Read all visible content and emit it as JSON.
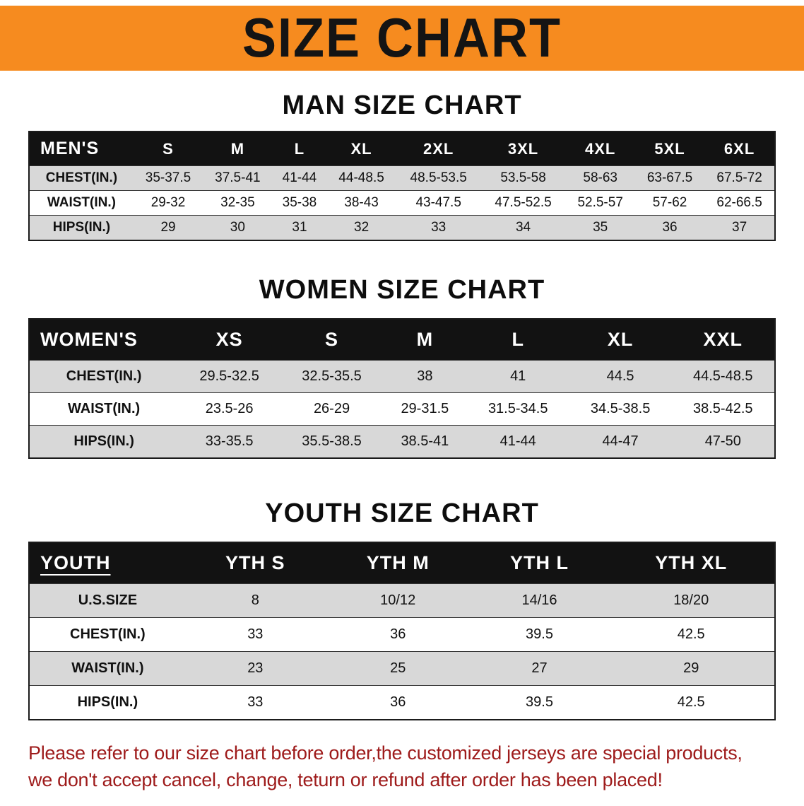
{
  "banner": {
    "title": "SIZE CHART"
  },
  "sections": [
    {
      "heading": "MAN SIZE CHART",
      "table": {
        "header": [
          "MEN'S",
          "S",
          "M",
          "L",
          "XL",
          "2XL",
          "3XL",
          "4XL",
          "5XL",
          "6XL"
        ],
        "rows": [
          [
            "CHEST(IN.)",
            "35-37.5",
            "37.5-41",
            "41-44",
            "44-48.5",
            "48.5-53.5",
            "53.5-58",
            "58-63",
            "63-67.5",
            "67.5-72"
          ],
          [
            "WAIST(IN.)",
            "29-32",
            "32-35",
            "35-38",
            "38-43",
            "43-47.5",
            "47.5-52.5",
            "52.5-57",
            "57-62",
            "62-66.5"
          ],
          [
            "HIPS(IN.)",
            "29",
            "30",
            "31",
            "32",
            "33",
            "34",
            "35",
            "36",
            "37"
          ]
        ]
      }
    },
    {
      "heading": "WOMEN SIZE CHART",
      "table": {
        "header": [
          "WOMEN'S",
          "XS",
          "S",
          "M",
          "L",
          "XL",
          "XXL"
        ],
        "rows": [
          [
            "CHEST(IN.)",
            "29.5-32.5",
            "32.5-35.5",
            "38",
            "41",
            "44.5",
            "44.5-48.5"
          ],
          [
            "WAIST(IN.)",
            "23.5-26",
            "26-29",
            "29-31.5",
            "31.5-34.5",
            "34.5-38.5",
            "38.5-42.5"
          ],
          [
            "HIPS(IN.)",
            "33-35.5",
            "35.5-38.5",
            "38.5-41",
            "41-44",
            "44-47",
            "47-50"
          ]
        ]
      }
    },
    {
      "heading": "YOUTH SIZE CHART",
      "table": {
        "header": [
          "YOUTH",
          "YTH S",
          "YTH M",
          "YTH L",
          "YTH XL"
        ],
        "rows": [
          [
            "U.S.SIZE",
            "8",
            "10/12",
            "14/16",
            "18/20"
          ],
          [
            "CHEST(IN.)",
            "33",
            "36",
            "39.5",
            "42.5"
          ],
          [
            "WAIST(IN.)",
            "23",
            "25",
            "27",
            "29"
          ],
          [
            "HIPS(IN.)",
            "33",
            "36",
            "39.5",
            "42.5"
          ]
        ]
      }
    }
  ],
  "footer": {
    "line1": "Please refer to our size chart before order,the customized jerseys are special products,",
    "line2": "we don't accept cancel, change, teturn or refund after order has been placed!"
  },
  "colors": {
    "banner_orange": "#F68B1F",
    "header_black": "#121212",
    "row_gray": "#D8D8D8",
    "notice_red": "#9E1B1B"
  }
}
